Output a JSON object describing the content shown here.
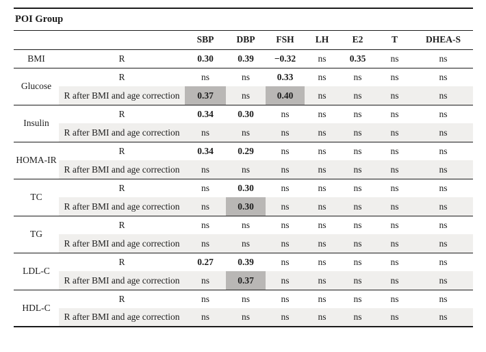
{
  "table": {
    "title": "POI Group",
    "columns": [
      "SBP",
      "DBP",
      "FSH",
      "LH",
      "E2",
      "T",
      "DHEA-S"
    ],
    "row_labels": {
      "r": "R",
      "corrected": "R after BMI and age correction"
    },
    "not_significant_marker": "ns",
    "groups": [
      {
        "param": "BMI",
        "rows": [
          {
            "label": "R",
            "corrected": false,
            "values": [
              "0.30",
              "0.39",
              "−0.32",
              "ns",
              "0.35",
              "ns",
              "ns"
            ],
            "highlight_cols": []
          }
        ]
      },
      {
        "param": "Glucose",
        "rows": [
          {
            "label": "R",
            "corrected": false,
            "values": [
              "ns",
              "ns",
              "0.33",
              "ns",
              "ns",
              "ns",
              "ns"
            ],
            "highlight_cols": []
          },
          {
            "label": "R after BMI and age correction",
            "corrected": true,
            "values": [
              "0.37",
              "ns",
              "0.40",
              "ns",
              "ns",
              "ns",
              "ns"
            ],
            "highlight_cols": [
              0,
              2
            ]
          }
        ]
      },
      {
        "param": "Insulin",
        "rows": [
          {
            "label": "R",
            "corrected": false,
            "values": [
              "0.34",
              "0.30",
              "ns",
              "ns",
              "ns",
              "ns",
              "ns"
            ],
            "highlight_cols": []
          },
          {
            "label": "R after BMI and age correction",
            "corrected": true,
            "values": [
              "ns",
              "ns",
              "ns",
              "ns",
              "ns",
              "ns",
              "ns"
            ],
            "highlight_cols": []
          }
        ]
      },
      {
        "param": "HOMA-IR",
        "rows": [
          {
            "label": "R",
            "corrected": false,
            "values": [
              "0.34",
              "0.29",
              "ns",
              "ns",
              "ns",
              "ns",
              "ns"
            ],
            "highlight_cols": []
          },
          {
            "label": "R after BMI and age correction",
            "corrected": true,
            "values": [
              "ns",
              "ns",
              "ns",
              "ns",
              "ns",
              "ns",
              "ns"
            ],
            "highlight_cols": []
          }
        ]
      },
      {
        "param": "TC",
        "rows": [
          {
            "label": "R",
            "corrected": false,
            "values": [
              "ns",
              "0.30",
              "ns",
              "ns",
              "ns",
              "ns",
              "ns"
            ],
            "highlight_cols": []
          },
          {
            "label": "R after BMI and age correction",
            "corrected": true,
            "values": [
              "ns",
              "0.30",
              "ns",
              "ns",
              "ns",
              "ns",
              "ns"
            ],
            "highlight_cols": [
              1
            ]
          }
        ]
      },
      {
        "param": "TG",
        "rows": [
          {
            "label": "R",
            "corrected": false,
            "values": [
              "ns",
              "ns",
              "ns",
              "ns",
              "ns",
              "ns",
              "ns"
            ],
            "highlight_cols": []
          },
          {
            "label": "R after BMI and age correction",
            "corrected": true,
            "values": [
              "ns",
              "ns",
              "ns",
              "ns",
              "ns",
              "ns",
              "ns"
            ],
            "highlight_cols": []
          }
        ]
      },
      {
        "param": "LDL-C",
        "rows": [
          {
            "label": "R",
            "corrected": false,
            "values": [
              "0.27",
              "0.39",
              "ns",
              "ns",
              "ns",
              "ns",
              "ns"
            ],
            "highlight_cols": []
          },
          {
            "label": "R after BMI and age correction",
            "corrected": true,
            "values": [
              "ns",
              "0.37",
              "ns",
              "ns",
              "ns",
              "ns",
              "ns"
            ],
            "highlight_cols": [
              1
            ]
          }
        ]
      },
      {
        "param": "HDL-C",
        "rows": [
          {
            "label": "R",
            "corrected": false,
            "values": [
              "ns",
              "ns",
              "ns",
              "ns",
              "ns",
              "ns",
              "ns"
            ],
            "highlight_cols": []
          },
          {
            "label": "R after BMI and age correction",
            "corrected": true,
            "values": [
              "ns",
              "ns",
              "ns",
              "ns",
              "ns",
              "ns",
              "ns"
            ],
            "highlight_cols": []
          }
        ]
      }
    ],
    "colors": {
      "highlight_cell": "#b9b7b5",
      "corrected_row_bg": "#f0efed",
      "border": "#1a1a1a",
      "text": "#1c1c1c"
    }
  }
}
